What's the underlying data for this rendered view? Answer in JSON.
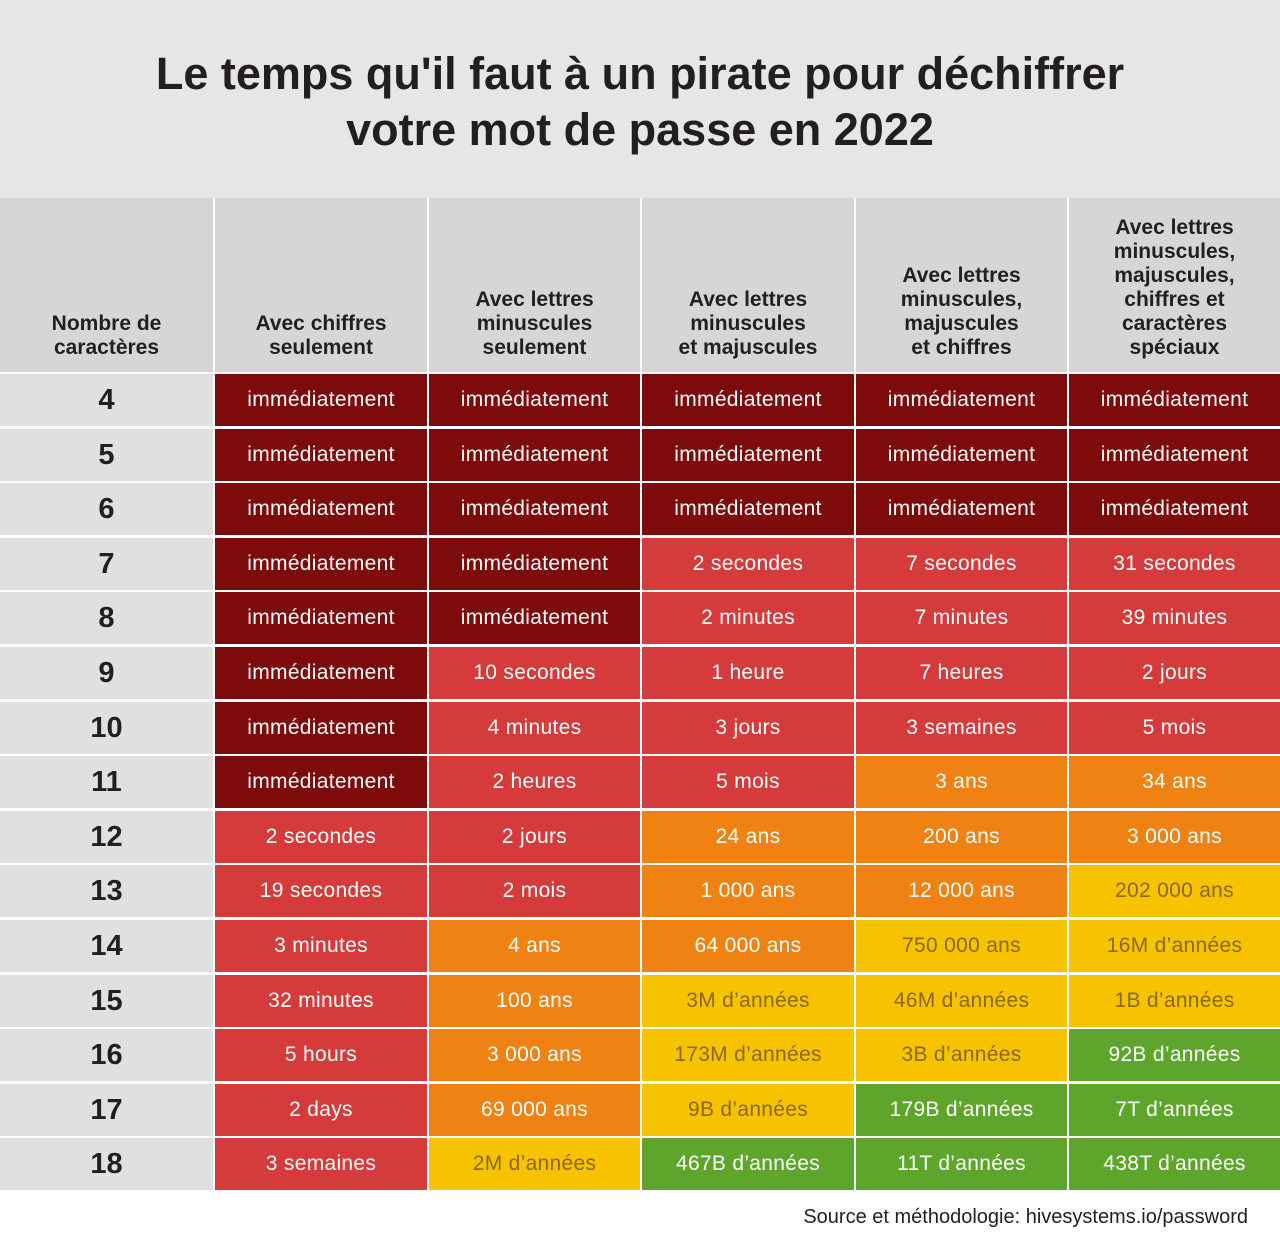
{
  "title": "Le temps qu'il faut à un pirate pour déchiffrer\nvotre mot de passe en 2022",
  "source": "Source et méthodologie: hivesystems.io/password",
  "colors": {
    "immediate": "#7e0b0b",
    "short": "#d63b3b",
    "medium": "#ef8213",
    "long": "#f7c200",
    "very_long": "#5ea52c",
    "header_bg": "#d6d6d6",
    "row_label_bg": "#e0e0e0",
    "title_bg": "#e6e6e6"
  },
  "chart_data": {
    "type": "table",
    "title": "Le temps qu'il faut à un pirate pour déchiffrer votre mot de passe en 2022",
    "columns": [
      "Nombre de\ncaractères",
      "Avec chiffres\nseulement",
      "Avec lettres\nminuscules\nseulement",
      "Avec lettres\nminuscules\net majuscules",
      "Avec lettres\nminuscules,\nmajuscules\net chiffres",
      "Avec lettres\nminuscules,\nmajuscules,\nchiffres et\ncaractères\nspéciaux"
    ],
    "rows": [
      {
        "label": "4",
        "cells": [
          {
            "text": "immédiatement",
            "level": "immediate"
          },
          {
            "text": "immédiatement",
            "level": "immediate"
          },
          {
            "text": "immédiatement",
            "level": "immediate"
          },
          {
            "text": "immédiatement",
            "level": "immediate"
          },
          {
            "text": "immédiatement",
            "level": "immediate"
          }
        ]
      },
      {
        "label": "5",
        "cells": [
          {
            "text": "immédiatement",
            "level": "immediate"
          },
          {
            "text": "immédiatement",
            "level": "immediate"
          },
          {
            "text": "immédiatement",
            "level": "immediate"
          },
          {
            "text": "immédiatement",
            "level": "immediate"
          },
          {
            "text": "immédiatement",
            "level": "immediate"
          }
        ]
      },
      {
        "label": "6",
        "cells": [
          {
            "text": "immédiatement",
            "level": "immediate"
          },
          {
            "text": "immédiatement",
            "level": "immediate"
          },
          {
            "text": "immédiatement",
            "level": "immediate"
          },
          {
            "text": "immédiatement",
            "level": "immediate"
          },
          {
            "text": "immédiatement",
            "level": "immediate"
          }
        ]
      },
      {
        "label": "7",
        "cells": [
          {
            "text": "immédiatement",
            "level": "immediate"
          },
          {
            "text": "immédiatement",
            "level": "immediate"
          },
          {
            "text": "2 secondes",
            "level": "short"
          },
          {
            "text": "7 secondes",
            "level": "short"
          },
          {
            "text": "31 secondes",
            "level": "short"
          }
        ]
      },
      {
        "label": "8",
        "cells": [
          {
            "text": "immédiatement",
            "level": "immediate"
          },
          {
            "text": "immédiatement",
            "level": "immediate"
          },
          {
            "text": "2 minutes",
            "level": "short"
          },
          {
            "text": "7 minutes",
            "level": "short"
          },
          {
            "text": "39 minutes",
            "level": "short"
          }
        ]
      },
      {
        "label": "9",
        "cells": [
          {
            "text": "immédiatement",
            "level": "immediate"
          },
          {
            "text": "10 secondes",
            "level": "short"
          },
          {
            "text": "1 heure",
            "level": "short"
          },
          {
            "text": "7 heures",
            "level": "short"
          },
          {
            "text": "2 jours",
            "level": "short"
          }
        ]
      },
      {
        "label": "10",
        "cells": [
          {
            "text": "immédiatement",
            "level": "immediate"
          },
          {
            "text": "4 minutes",
            "level": "short"
          },
          {
            "text": "3 jours",
            "level": "short"
          },
          {
            "text": "3 semaines",
            "level": "short"
          },
          {
            "text": "5 mois",
            "level": "short"
          }
        ]
      },
      {
        "label": "11",
        "cells": [
          {
            "text": "immédiatement",
            "level": "immediate"
          },
          {
            "text": "2 heures",
            "level": "short"
          },
          {
            "text": "5 mois",
            "level": "short"
          },
          {
            "text": "3 ans",
            "level": "medium"
          },
          {
            "text": "34 ans",
            "level": "medium"
          }
        ]
      },
      {
        "label": "12",
        "cells": [
          {
            "text": "2 secondes",
            "level": "short"
          },
          {
            "text": "2 jours",
            "level": "short"
          },
          {
            "text": "24 ans",
            "level": "medium"
          },
          {
            "text": "200 ans",
            "level": "medium"
          },
          {
            "text": "3 000 ans",
            "level": "medium"
          }
        ]
      },
      {
        "label": "13",
        "cells": [
          {
            "text": "19 secondes",
            "level": "short"
          },
          {
            "text": "2 mois",
            "level": "short"
          },
          {
            "text": "1 000 ans",
            "level": "medium"
          },
          {
            "text": "12 000 ans",
            "level": "medium"
          },
          {
            "text": "202 000 ans",
            "level": "long"
          }
        ]
      },
      {
        "label": "14",
        "cells": [
          {
            "text": "3 minutes",
            "level": "short"
          },
          {
            "text": "4 ans",
            "level": "medium"
          },
          {
            "text": "64 000 ans",
            "level": "medium"
          },
          {
            "text": "750 000 ans",
            "level": "long"
          },
          {
            "text": "16M d’années",
            "level": "long"
          }
        ]
      },
      {
        "label": "15",
        "cells": [
          {
            "text": "32 minutes",
            "level": "short"
          },
          {
            "text": "100 ans",
            "level": "medium"
          },
          {
            "text": "3M d’années",
            "level": "long"
          },
          {
            "text": "46M d’années",
            "level": "long"
          },
          {
            "text": "1B d’années",
            "level": "long"
          }
        ]
      },
      {
        "label": "16",
        "cells": [
          {
            "text": "5 hours",
            "level": "short"
          },
          {
            "text": "3 000 ans",
            "level": "medium"
          },
          {
            "text": "173M d’années",
            "level": "long"
          },
          {
            "text": "3B d’années",
            "level": "long"
          },
          {
            "text": "92B d’années",
            "level": "very_long"
          }
        ]
      },
      {
        "label": "17",
        "cells": [
          {
            "text": "2 days",
            "level": "short"
          },
          {
            "text": "69 000 ans",
            "level": "medium"
          },
          {
            "text": "9B d’années",
            "level": "long"
          },
          {
            "text": "179B d’années",
            "level": "very_long"
          },
          {
            "text": "7T d’années",
            "level": "very_long"
          }
        ]
      },
      {
        "label": "18",
        "cells": [
          {
            "text": "3 semaines",
            "level": "short"
          },
          {
            "text": "2M d’années",
            "level": "long"
          },
          {
            "text": "467B d’années",
            "level": "very_long"
          },
          {
            "text": "11T d’années",
            "level": "very_long"
          },
          {
            "text": "438T d’années",
            "level": "very_long"
          }
        ]
      }
    ]
  }
}
